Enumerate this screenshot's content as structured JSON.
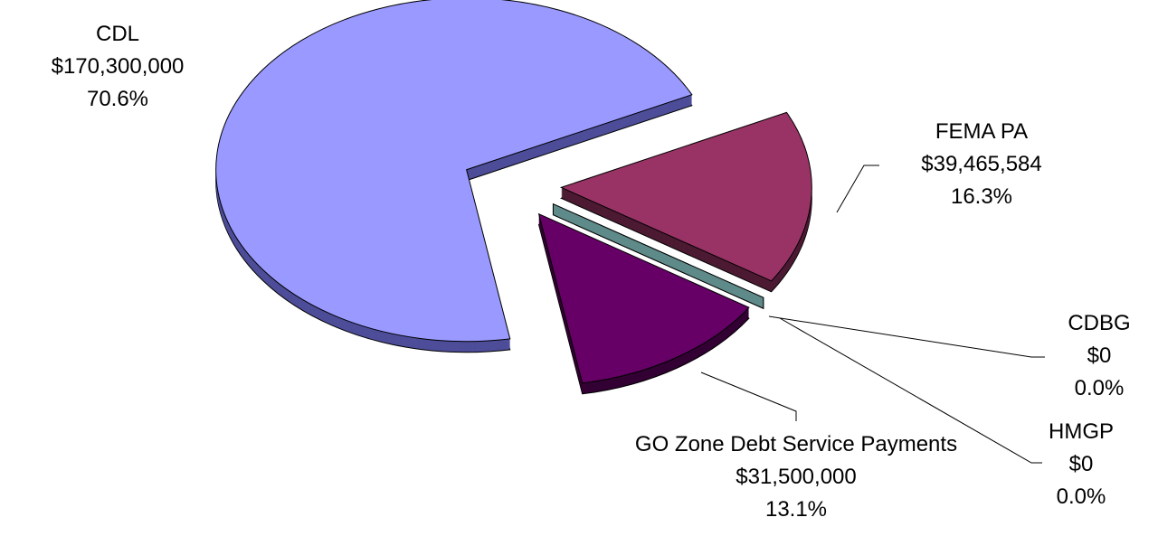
{
  "chart_data": {
    "type": "pie3d",
    "categories": [
      "CDL",
      "FEMA PA",
      "CDBG",
      "HMGP",
      "GO Zone Debt Service Payments"
    ],
    "values": [
      170300000,
      39465584,
      0,
      0,
      31500000
    ],
    "value_labels": [
      "$170,300,000",
      "$39,465,584",
      "$0",
      "$0",
      "$31,500,000"
    ],
    "percent_labels": [
      "70.6%",
      "16.3%",
      "0.0%",
      "0.0%",
      "13.1%"
    ],
    "colors": [
      "#9999ff",
      "#993366",
      "#669999",
      "#5f8a8a",
      "#660066"
    ],
    "side_colors": [
      "#4d4d99",
      "#4d1a33",
      "#3d6060",
      "#3d6060",
      "#330033"
    ]
  }
}
